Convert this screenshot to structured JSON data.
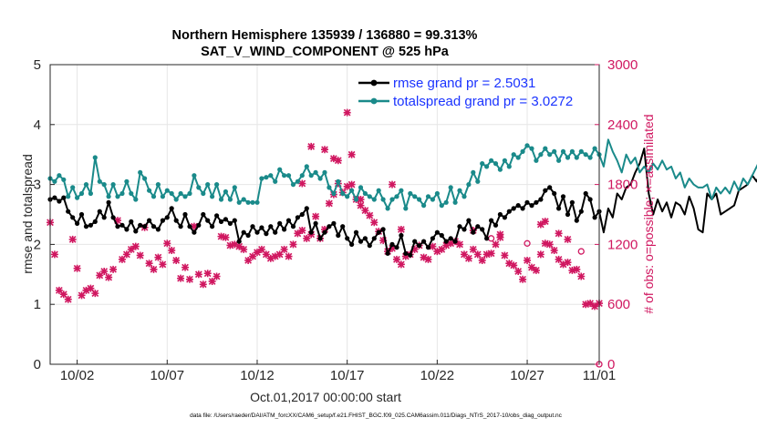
{
  "chart_data": {
    "type": "line",
    "title": "Northern Hemisphere 135939 / 136880 = 99.313%",
    "subtitle": "SAT_V_WIND_COMPONENT @ 525 hPa",
    "xlabel": "Oct.01,2017 00:00:00 start",
    "ylabel": "rmse and totalspread",
    "y2label": "# of obs: o=possible; ×=assimilated",
    "footnote": "data file: /Users/raeder/DAI/ATM_forcXX/CAM6_setup/f.e21.FHIST_BGC.f09_025.CAM6assim.011/Diags_NTrS_2017-10/obs_diag_output.nc",
    "xlim": [
      0.5,
      31
    ],
    "ylim": [
      0,
      5
    ],
    "y2lim": [
      0,
      3000
    ],
    "x_ticks": [
      2,
      7,
      12,
      17,
      22,
      27,
      31
    ],
    "x_tick_labels": [
      "10/02",
      "10/07",
      "10/12",
      "10/17",
      "10/22",
      "10/27",
      "11/01"
    ],
    "y_ticks": [
      "0",
      "1",
      "2",
      "3",
      "4",
      "5"
    ],
    "y2_ticks": [
      "0",
      "600",
      "1200",
      "1800",
      "2400",
      "3000"
    ],
    "grid": true,
    "legend": [
      {
        "label": "rmse grand pr = 2.5031",
        "color": "#000000"
      },
      {
        "label": "totalspread grand pr = 3.0272",
        "color": "#1a8a8a"
      }
    ],
    "series": [
      {
        "name": "rmse",
        "color": "#000000",
        "axis": "left",
        "x_start": 0.5,
        "x_step": 0.25,
        "values": [
          2.75,
          2.78,
          2.72,
          2.78,
          2.55,
          2.45,
          2.35,
          2.5,
          2.3,
          2.32,
          2.38,
          2.55,
          2.45,
          2.7,
          2.45,
          2.3,
          2.32,
          2.25,
          2.38,
          2.22,
          2.32,
          2.3,
          2.4,
          2.3,
          2.25,
          2.4,
          2.45,
          2.6,
          2.4,
          2.3,
          2.5,
          2.3,
          2.2,
          2.32,
          2.5,
          2.4,
          2.3,
          2.48,
          2.38,
          2.42,
          2.35,
          2.4,
          2.05,
          2.2,
          2.15,
          2.3,
          2.2,
          2.28,
          2.18,
          2.3,
          2.2,
          2.35,
          2.25,
          2.4,
          2.3,
          2.45,
          2.5,
          2.6,
          2.2,
          2.35,
          2.1,
          2.2,
          2.3,
          2.35,
          2.15,
          2.3,
          2.1,
          2.0,
          2.2,
          2.05,
          2.1,
          1.98,
          2.1,
          2.2,
          2.25,
          1.85,
          2.0,
          1.95,
          2.15,
          1.85,
          1.82,
          2.05,
          1.98,
          2.05,
          1.95,
          2.1,
          2.2,
          2.15,
          2.05,
          2.1,
          2.05,
          2.3,
          2.25,
          2.4,
          2.2,
          2.3,
          2.25,
          2.1,
          2.4,
          2.32,
          2.5,
          2.45,
          2.55,
          2.6,
          2.65,
          2.6,
          2.7,
          2.65,
          2.7,
          2.75,
          2.9,
          2.95,
          2.85,
          2.6,
          2.8,
          2.5,
          2.7,
          2.4,
          2.55,
          2.85,
          2.75,
          2.45,
          2.55,
          2.2,
          2.6,
          2.45,
          2.85,
          2.75,
          2.95,
          3.0,
          3.2,
          3.35,
          3.6,
          2.85,
          2.5,
          2.75,
          2.55,
          2.7,
          2.45,
          2.7,
          2.65,
          2.5,
          2.8,
          2.6,
          2.25,
          2.2,
          2.85,
          2.75,
          2.85,
          2.5,
          2.55,
          2.6,
          2.65,
          2.9,
          2.95,
          3.0,
          3.15,
          3.05,
          3.25,
          3.0,
          3.1,
          3.15,
          3.4,
          3.05,
          3.7,
          3.6,
          3.65,
          3.6,
          3.15,
          3.0,
          2.95
        ]
      },
      {
        "name": "totalspread",
        "color": "#1a8a8a",
        "axis": "left",
        "x_start": 0.5,
        "x_step": 0.25,
        "values": [
          3.1,
          3.05,
          3.15,
          3.08,
          2.8,
          2.95,
          2.78,
          2.85,
          3.0,
          2.85,
          3.45,
          3.05,
          3.0,
          2.8,
          3.0,
          2.8,
          2.85,
          3.05,
          2.85,
          2.75,
          3.2,
          3.1,
          2.9,
          2.8,
          3.0,
          2.8,
          2.9,
          2.85,
          2.75,
          2.85,
          2.8,
          2.85,
          3.15,
          2.95,
          2.85,
          3.0,
          2.8,
          3.0,
          2.75,
          2.88,
          2.75,
          2.95,
          2.7,
          2.75,
          2.7,
          2.7,
          2.7,
          3.1,
          3.12,
          3.15,
          3.05,
          3.25,
          3.15,
          3.15,
          3.0,
          3.05,
          3.15,
          3.3,
          3.15,
          3.2,
          3.1,
          3.2,
          2.95,
          2.85,
          3.05,
          2.85,
          2.8,
          2.9,
          2.75,
          2.95,
          2.85,
          2.8,
          2.75,
          2.9,
          2.75,
          2.6,
          2.75,
          2.8,
          2.9,
          2.6,
          2.85,
          2.8,
          2.75,
          2.65,
          2.8,
          2.75,
          2.85,
          2.65,
          2.7,
          2.95,
          2.7,
          2.9,
          2.8,
          3.0,
          3.2,
          3.05,
          3.35,
          3.3,
          3.4,
          3.35,
          3.25,
          3.4,
          3.3,
          3.5,
          3.45,
          3.55,
          3.65,
          3.6,
          3.4,
          3.5,
          3.6,
          3.5,
          3.55,
          3.4,
          3.55,
          3.45,
          3.55,
          3.45,
          3.55,
          3.5,
          3.45,
          3.6,
          3.5,
          3.3,
          3.75,
          3.55,
          3.4,
          3.2,
          3.5,
          3.35,
          3.45,
          3.2,
          3.3,
          3.2,
          3.35,
          3.25,
          3.4,
          3.25,
          3.3,
          3.1,
          3.2,
          2.95,
          3.1,
          3.0,
          2.95,
          2.95,
          3.0,
          2.75,
          2.95,
          2.85,
          2.95,
          2.85,
          3.05,
          2.9,
          3.1,
          3.0,
          3.15,
          3.3,
          3.45,
          3.35,
          3.45,
          3.6,
          3.5,
          3.35,
          3.45,
          3.3,
          3.35
        ]
      },
      {
        "name": "# of obs assimilated",
        "color": "#d01760",
        "axis": "right",
        "marker": "x",
        "points": [
          [
            0.5,
            1420
          ],
          [
            0.75,
            1100
          ],
          [
            1.0,
            740
          ],
          [
            1.25,
            700
          ],
          [
            1.5,
            650
          ],
          [
            1.75,
            1250
          ],
          [
            2.0,
            960
          ],
          [
            2.25,
            690
          ],
          [
            2.5,
            740
          ],
          [
            2.75,
            760
          ],
          [
            3.0,
            710
          ],
          [
            3.25,
            890
          ],
          [
            3.5,
            930
          ],
          [
            3.75,
            870
          ],
          [
            4.0,
            950
          ],
          [
            4.25,
            1440
          ],
          [
            4.5,
            1050
          ],
          [
            4.75,
            1100
          ],
          [
            5.0,
            1150
          ],
          [
            5.25,
            1180
          ],
          [
            5.5,
            1090
          ],
          [
            5.75,
            1370
          ],
          [
            6.0,
            1010
          ],
          [
            6.25,
            950
          ],
          [
            6.5,
            1070
          ],
          [
            6.75,
            1000
          ],
          [
            7.0,
            1210
          ],
          [
            7.25,
            1140
          ],
          [
            7.5,
            1040
          ],
          [
            7.75,
            860
          ],
          [
            8.0,
            970
          ],
          [
            8.25,
            850
          ],
          [
            8.5,
            1380
          ],
          [
            8.75,
            900
          ],
          [
            9.0,
            800
          ],
          [
            9.25,
            910
          ],
          [
            9.5,
            830
          ],
          [
            9.75,
            880
          ],
          [
            10.0,
            1280
          ],
          [
            10.25,
            1270
          ],
          [
            10.5,
            1190
          ],
          [
            10.75,
            1200
          ],
          [
            11.0,
            1180
          ],
          [
            11.25,
            1150
          ],
          [
            11.5,
            1040
          ],
          [
            11.75,
            1080
          ],
          [
            12.0,
            1120
          ],
          [
            12.25,
            1150
          ],
          [
            12.5,
            1100
          ],
          [
            12.75,
            1060
          ],
          [
            13.0,
            1080
          ],
          [
            13.25,
            1100
          ],
          [
            13.5,
            1150
          ],
          [
            13.75,
            1080
          ],
          [
            14.0,
            1200
          ],
          [
            14.25,
            1310
          ],
          [
            14.5,
            1340
          ],
          [
            14.75,
            1260
          ],
          [
            15.0,
            1300
          ],
          [
            15.25,
            1480
          ],
          [
            15.5,
            1260
          ],
          [
            15.75,
            1350
          ],
          [
            16.0,
            1610
          ],
          [
            16.25,
            1700
          ],
          [
            16.5,
            1810
          ],
          [
            16.75,
            1720
          ],
          [
            17.0,
            1780
          ],
          [
            17.25,
            1800
          ],
          [
            17.5,
            1650
          ],
          [
            17.75,
            1590
          ],
          [
            18.0,
            1540
          ],
          [
            18.25,
            1490
          ],
          [
            18.5,
            1420
          ],
          [
            18.75,
            1330
          ],
          [
            19.0,
            1240
          ],
          [
            19.25,
            1130
          ],
          [
            19.5,
            1160
          ],
          [
            19.75,
            1050
          ],
          [
            20.0,
            1000
          ],
          [
            20.25,
            1080
          ],
          [
            20.5,
            1100
          ],
          [
            20.75,
            1150
          ],
          [
            21.0,
            1190
          ],
          [
            21.25,
            1070
          ],
          [
            21.5,
            1050
          ],
          [
            21.75,
            1180
          ],
          [
            22.0,
            1130
          ],
          [
            22.25,
            1150
          ],
          [
            22.5,
            1190
          ],
          [
            22.75,
            1210
          ],
          [
            23.0,
            1230
          ],
          [
            23.25,
            1200
          ],
          [
            23.5,
            1100
          ],
          [
            23.75,
            1060
          ],
          [
            24.0,
            1150
          ],
          [
            24.25,
            1100
          ],
          [
            24.5,
            1040
          ],
          [
            24.75,
            1100
          ],
          [
            25.0,
            1110
          ],
          [
            25.25,
            1200
          ],
          [
            25.5,
            1270
          ],
          [
            25.75,
            1090
          ],
          [
            26.0,
            1010
          ],
          [
            26.25,
            990
          ],
          [
            26.5,
            930
          ],
          [
            26.75,
            850
          ],
          [
            27.0,
            1040
          ],
          [
            27.25,
            970
          ],
          [
            27.5,
            940
          ],
          [
            27.75,
            1100
          ],
          [
            28.0,
            1210
          ],
          [
            28.25,
            1200
          ],
          [
            28.5,
            1140
          ],
          [
            28.75,
            1050
          ],
          [
            29.0,
            1000
          ],
          [
            29.25,
            1020
          ],
          [
            29.5,
            940
          ],
          [
            29.75,
            950
          ],
          [
            30.0,
            880
          ],
          [
            30.25,
            600
          ],
          [
            30.5,
            610
          ],
          [
            30.75,
            580
          ],
          [
            31.0,
            610
          ],
          [
            31.25,
            570
          ],
          [
            31.5,
            640
          ]
        ]
      },
      {
        "name": "# of obs assimilated (high)",
        "color": "#d01760",
        "axis": "right",
        "marker": "x",
        "points": [
          [
            14.5,
            1810
          ],
          [
            15.0,
            2180
          ],
          [
            15.75,
            2150
          ],
          [
            16.25,
            2060
          ],
          [
            16.5,
            2040
          ],
          [
            17.0,
            2520
          ],
          [
            17.25,
            2100
          ],
          [
            17.75,
            1650
          ],
          [
            19.5,
            1800
          ],
          [
            20.0,
            1350
          ],
          [
            24.0,
            1340
          ],
          [
            25.5,
            1300
          ],
          [
            27.75,
            1400
          ],
          [
            28.0,
            1430
          ],
          [
            28.75,
            1310
          ],
          [
            29.25,
            1250
          ]
        ]
      },
      {
        "name": "# of obs possible",
        "color": "#d01760",
        "axis": "right",
        "marker": "o",
        "points": [
          [
            25.0,
            1260
          ],
          [
            27.0,
            1210
          ],
          [
            30.0,
            1130
          ],
          [
            31.0,
            0
          ]
        ]
      }
    ]
  }
}
